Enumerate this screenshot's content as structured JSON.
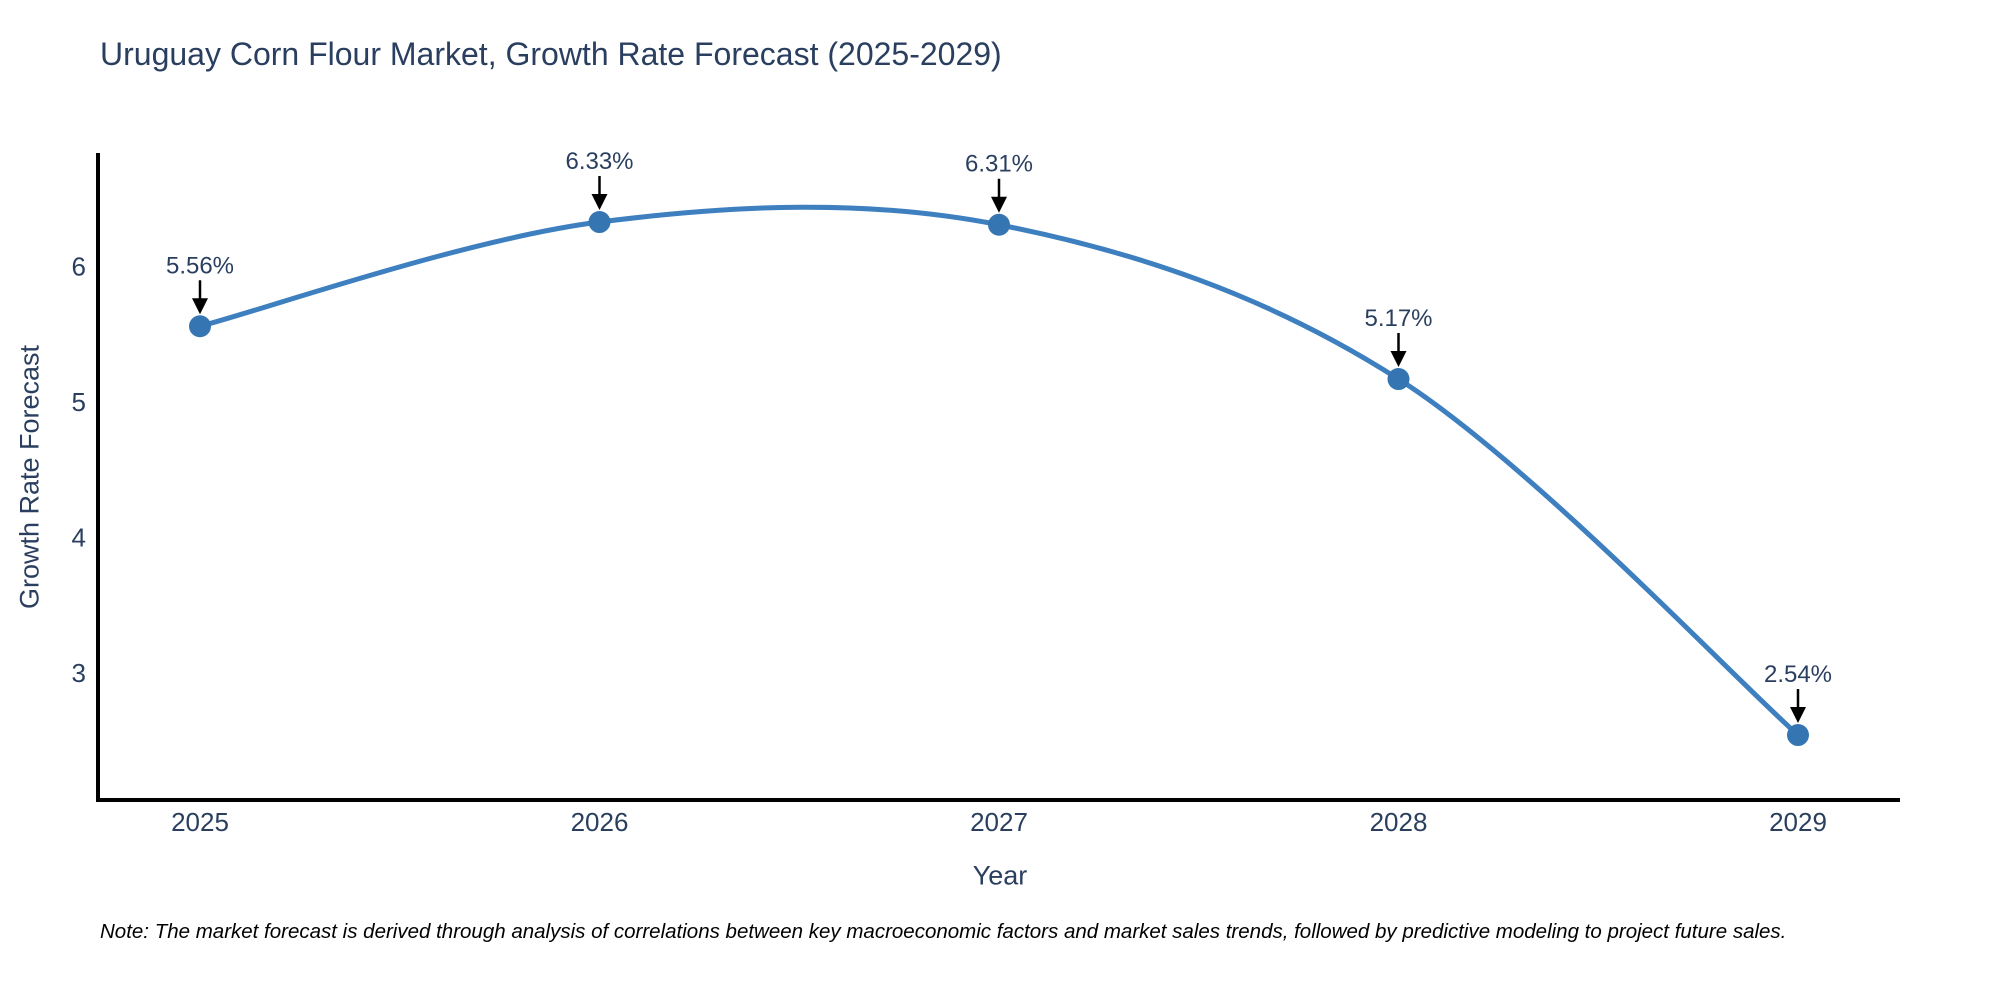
{
  "title": "Uruguay Corn Flour Market, Growth Rate Forecast (2025-2029)",
  "note": "Note: The market forecast is derived through analysis of correlations between key macroeconomic factors and market sales trends, followed by predictive modeling to project future sales.",
  "chart_data": {
    "type": "line",
    "title": "Uruguay Corn Flour Market, Growth Rate Forecast (2025-2029)",
    "xlabel": "Year",
    "ylabel": "Growth Rate Forecast",
    "categories": [
      "2025",
      "2026",
      "2027",
      "2028",
      "2029"
    ],
    "series": [
      {
        "name": "Growth Rate Forecast",
        "values": [
          5.56,
          6.33,
          6.31,
          5.17,
          2.54
        ]
      }
    ],
    "point_labels": [
      "5.56%",
      "6.33%",
      "6.31%",
      "5.17%",
      "2.54%"
    ],
    "yticks": [
      3,
      4,
      5,
      6
    ],
    "ylim": [
      2.06,
      6.84
    ],
    "line_shape": "spline",
    "grid": false,
    "legend": "none",
    "colors": {
      "line": "#3d7fbf",
      "marker": "#3575b2",
      "axis": "#000000",
      "tick_text": "#2a3f5f",
      "annotation_text": "#2a3f5f",
      "arrow": "#000000",
      "title_text": "#2a3f5f",
      "background": "#ffffff"
    }
  }
}
